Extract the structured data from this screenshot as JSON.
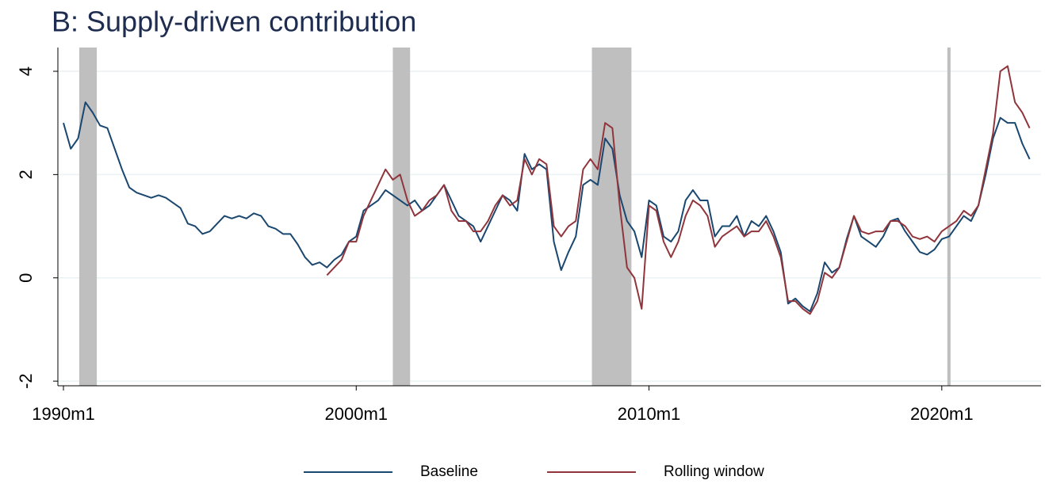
{
  "chart_data": {
    "type": "line",
    "title": "B: Supply-driven contribution",
    "x": [
      1990,
      1990.25,
      1990.5,
      1990.75,
      1991,
      1991.25,
      1991.5,
      1991.75,
      1992,
      1992.25,
      1992.5,
      1992.75,
      1993,
      1993.25,
      1993.5,
      1993.75,
      1994,
      1994.25,
      1994.5,
      1994.75,
      1995,
      1995.25,
      1995.5,
      1995.75,
      1996,
      1996.25,
      1996.5,
      1996.75,
      1997,
      1997.25,
      1997.5,
      1997.75,
      1998,
      1998.25,
      1998.5,
      1998.75,
      1999,
      1999.25,
      1999.5,
      1999.75,
      2000,
      2000.25,
      2000.5,
      2000.75,
      2001,
      2001.25,
      2001.5,
      2001.75,
      2002,
      2002.25,
      2002.5,
      2002.75,
      2003,
      2003.25,
      2003.5,
      2003.75,
      2004,
      2004.25,
      2004.5,
      2004.75,
      2005,
      2005.25,
      2005.5,
      2005.75,
      2006,
      2006.25,
      2006.5,
      2006.75,
      2007,
      2007.25,
      2007.5,
      2007.75,
      2008,
      2008.25,
      2008.5,
      2008.75,
      2009,
      2009.25,
      2009.5,
      2009.75,
      2010,
      2010.25,
      2010.5,
      2010.75,
      2011,
      2011.25,
      2011.5,
      2011.75,
      2012,
      2012.25,
      2012.5,
      2012.75,
      2013,
      2013.25,
      2013.5,
      2013.75,
      2014,
      2014.25,
      2014.5,
      2014.75,
      2015,
      2015.25,
      2015.5,
      2015.75,
      2016,
      2016.25,
      2016.5,
      2016.75,
      2017,
      2017.25,
      2017.5,
      2017.75,
      2018,
      2018.25,
      2018.5,
      2018.75,
      2019,
      2019.25,
      2019.5,
      2019.75,
      2020,
      2020.25,
      2020.5,
      2020.75,
      2021,
      2021.25,
      2021.5,
      2021.75,
      2022,
      2022.25,
      2022.5,
      2022.75,
      2023
    ],
    "series": [
      {
        "name": "Baseline",
        "color": "#1a476f",
        "values": [
          3.0,
          2.5,
          2.7,
          3.4,
          3.2,
          2.95,
          2.9,
          2.5,
          2.1,
          1.75,
          1.65,
          1.6,
          1.55,
          1.6,
          1.55,
          1.45,
          1.35,
          1.05,
          1.0,
          0.85,
          0.9,
          1.05,
          1.2,
          1.15,
          1.2,
          1.15,
          1.25,
          1.2,
          1.0,
          0.95,
          0.85,
          0.85,
          0.65,
          0.4,
          0.25,
          0.3,
          0.2,
          0.35,
          0.45,
          0.7,
          0.8,
          1.3,
          1.4,
          1.5,
          1.7,
          1.6,
          1.5,
          1.4,
          1.5,
          1.3,
          1.4,
          1.6,
          1.8,
          1.5,
          1.2,
          1.1,
          1.0,
          0.7,
          1.0,
          1.3,
          1.6,
          1.5,
          1.3,
          2.4,
          2.1,
          2.2,
          2.1,
          0.7,
          0.15,
          0.5,
          0.8,
          1.8,
          1.9,
          1.8,
          2.7,
          2.5,
          1.6,
          1.1,
          0.9,
          0.4,
          1.5,
          1.4,
          0.8,
          0.7,
          0.9,
          1.5,
          1.7,
          1.5,
          1.5,
          0.8,
          1.0,
          1.0,
          1.2,
          0.8,
          1.1,
          1.0,
          1.2,
          0.9,
          0.5,
          -0.5,
          -0.4,
          -0.55,
          -0.65,
          -0.3,
          0.3,
          0.1,
          0.2,
          0.75,
          1.2,
          0.8,
          0.7,
          0.6,
          0.8,
          1.1,
          1.15,
          0.9,
          0.7,
          0.5,
          0.45,
          0.55,
          0.75,
          0.8,
          1.0,
          1.2,
          1.1,
          1.4,
          2.0,
          2.7,
          3.1,
          3.0,
          3.0,
          2.6,
          2.3
        ]
      },
      {
        "name": "Rolling window",
        "color": "#90353b",
        "values": [
          null,
          null,
          null,
          null,
          null,
          null,
          null,
          null,
          null,
          null,
          null,
          null,
          null,
          null,
          null,
          null,
          null,
          null,
          null,
          null,
          null,
          null,
          null,
          null,
          null,
          null,
          null,
          null,
          null,
          null,
          null,
          null,
          null,
          null,
          null,
          null,
          0.05,
          0.2,
          0.35,
          0.7,
          0.7,
          1.2,
          1.5,
          1.8,
          2.1,
          1.9,
          2.0,
          1.5,
          1.2,
          1.3,
          1.5,
          1.6,
          1.8,
          1.3,
          1.1,
          1.1,
          0.9,
          0.9,
          1.1,
          1.4,
          1.6,
          1.4,
          1.5,
          2.3,
          2.0,
          2.3,
          2.2,
          1.0,
          0.8,
          1.0,
          1.1,
          2.1,
          2.3,
          2.1,
          3.0,
          2.9,
          1.4,
          0.2,
          0.0,
          -0.6,
          1.4,
          1.3,
          0.7,
          0.4,
          0.7,
          1.2,
          1.5,
          1.4,
          1.2,
          0.6,
          0.8,
          0.9,
          1.0,
          0.8,
          0.9,
          0.9,
          1.1,
          0.8,
          0.4,
          -0.45,
          -0.45,
          -0.6,
          -0.7,
          -0.45,
          0.1,
          0.0,
          0.2,
          0.7,
          1.2,
          0.9,
          0.85,
          0.9,
          0.9,
          1.1,
          1.1,
          1.0,
          0.8,
          0.75,
          0.8,
          0.7,
          0.9,
          1.0,
          1.1,
          1.3,
          1.2,
          1.4,
          2.1,
          2.8,
          4.0,
          4.1,
          3.4,
          3.2,
          2.9
        ]
      }
    ],
    "shaded_periods": [
      [
        1990.54,
        1991.14
      ],
      [
        2001.25,
        2001.84
      ],
      [
        2008.05,
        2009.4
      ],
      [
        2020.19,
        2020.3
      ]
    ],
    "shade_color": "#bfbfbf",
    "xlim": [
      1989.81,
      2023.39
    ],
    "xticks": [
      {
        "value": 1990,
        "label": "1990m1"
      },
      {
        "value": 2000,
        "label": "2000m1"
      },
      {
        "value": 2010,
        "label": "2010m1"
      },
      {
        "value": 2020,
        "label": "2020m1"
      }
    ],
    "ylim": [
      -2.09,
      4.46
    ],
    "yticks": [
      -2,
      0,
      2,
      4
    ],
    "grid": true,
    "legend": "bottom"
  }
}
